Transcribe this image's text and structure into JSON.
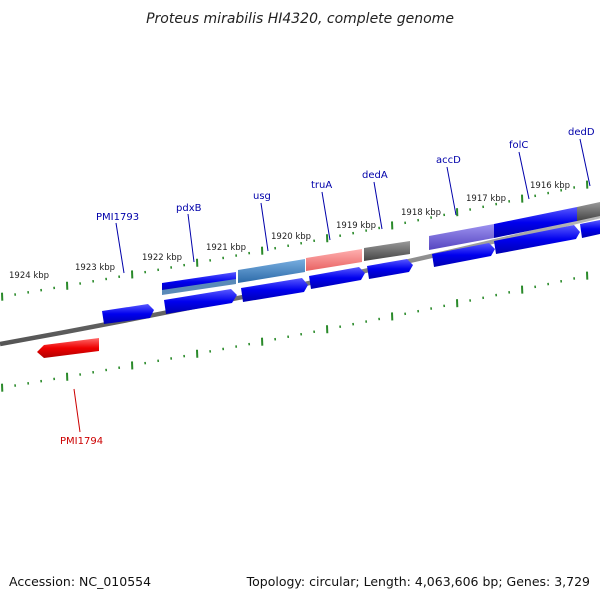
{
  "title": "Proteus mirabilis HI4320, complete genome",
  "footer": {
    "accession": "Accession: NC_010554",
    "summary": "Topology: circular; Length: 4,063,606 bp; Genes: 3,729"
  },
  "colors": {
    "plus_gene": "#0000ee",
    "minus_gene": "#ee0000",
    "ticks": "#2a8a2a",
    "genome_line": "#888888",
    "label_plus": "#0000aa",
    "label_minus": "#cc0000"
  },
  "scale_labels": [
    "1924 kbp",
    "1923 kbp",
    "1922 kbp",
    "1921 kbp",
    "1920 kbp",
    "1919 kbp",
    "1918 kbp",
    "1917 kbp",
    "1916 kbp"
  ],
  "gene_labels": [
    {
      "name": "PMI1793",
      "strand": "plus"
    },
    {
      "name": "pdxB",
      "strand": "plus"
    },
    {
      "name": "usg",
      "strand": "plus"
    },
    {
      "name": "truA",
      "strand": "plus"
    },
    {
      "name": "dedA",
      "strand": "plus"
    },
    {
      "name": "accD",
      "strand": "plus"
    },
    {
      "name": "folC",
      "strand": "plus"
    },
    {
      "name": "dedD",
      "strand": "plus"
    },
    {
      "name": "PMI1794",
      "strand": "minus"
    }
  ],
  "features": [
    {
      "name": "cds-upper-1",
      "color": "#1a1ae8"
    },
    {
      "name": "cds-upper-2",
      "color": "#3d7bb8"
    },
    {
      "name": "cds-upper-3",
      "color": "#f07a7a"
    },
    {
      "name": "cds-upper-4",
      "color": "#555555"
    },
    {
      "name": "cds-upper-5",
      "color": "#6a5ad0"
    },
    {
      "name": "cds-upper-6",
      "color": "#1a1ae8"
    },
    {
      "name": "cds-upper-7",
      "color": "#555555"
    }
  ]
}
